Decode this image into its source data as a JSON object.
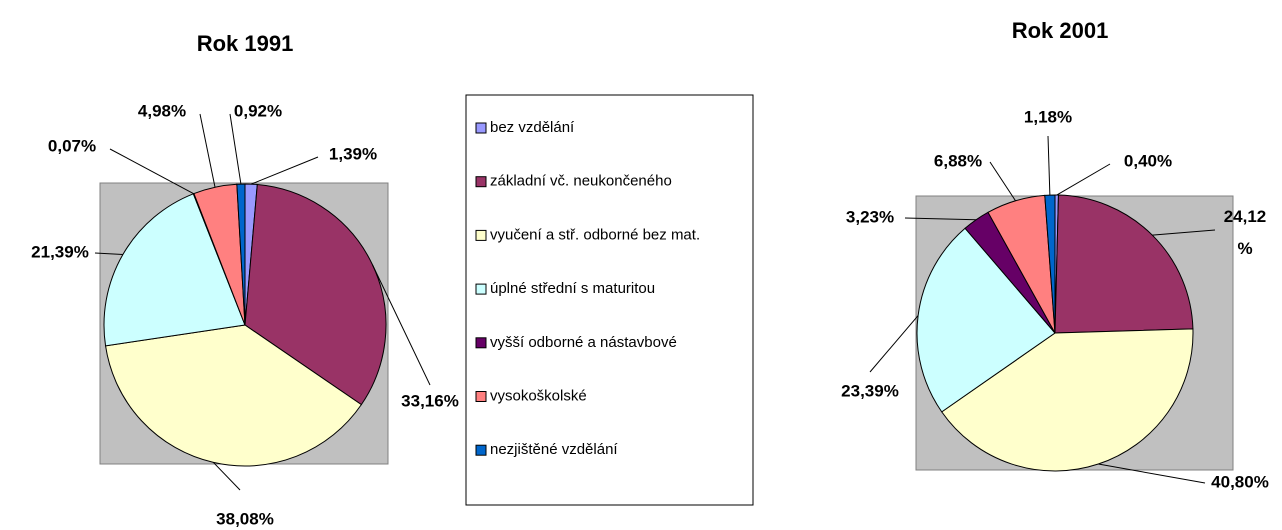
{
  "chart_data": [
    {
      "type": "pie",
      "title": "Rok 1991",
      "values": [
        1.39,
        33.16,
        38.08,
        21.39,
        0.07,
        4.98,
        0.92
      ],
      "value_labels": [
        "1,39%",
        "33,16%",
        "38,08%",
        "21,39%",
        "0,07%",
        "4,98%",
        "0,92%"
      ]
    },
    {
      "type": "pie",
      "title": "Rok 2001",
      "values": [
        0.4,
        24.12,
        40.8,
        23.39,
        3.23,
        6.88,
        1.18
      ],
      "value_labels": [
        "0,40%",
        "24,12 %",
        "40,80%",
        "23,39%",
        "3,23%",
        "6,88%",
        "1,18%"
      ]
    }
  ],
  "legend": {
    "labels": [
      "bez vzdělání",
      "základní vč. neukončeného",
      "vyučení a stř. odborné bez mat.",
      "úplné střední s maturitou",
      "vyšší odborné a nástavbové",
      "vysokoškolské",
      "nezjištěné vzdělání"
    ],
    "colors": [
      "#9999ff",
      "#993366",
      "#ffffcc",
      "#ccffff",
      "#660066",
      "#ff8080",
      "#0066cc"
    ]
  }
}
